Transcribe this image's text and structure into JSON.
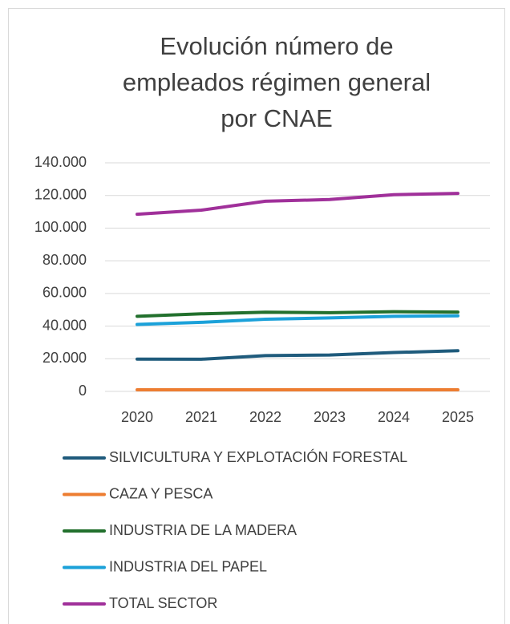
{
  "chart_data": {
    "type": "line",
    "title": [
      "Evolución número de",
      "empleados régimen general",
      "por CNAE"
    ],
    "categories": [
      "2020",
      "2021",
      "2022",
      "2023",
      "2024",
      "2025"
    ],
    "series": [
      {
        "name": "SILVICULTURA Y EXPLOTACIÓN FORESTAL",
        "color": "#1f5b7c",
        "values": [
          19800,
          19700,
          21900,
          22300,
          23800,
          24900
        ]
      },
      {
        "name": "CAZA Y PESCA",
        "color": "#ed7d31",
        "values": [
          1000,
          1000,
          1000,
          1000,
          1000,
          1000
        ]
      },
      {
        "name": "INDUSTRIA DE LA MADERA",
        "color": "#22702d",
        "values": [
          46000,
          47500,
          48500,
          48200,
          48800,
          48600
        ]
      },
      {
        "name": "INDUSTRIA DEL PAPEL",
        "color": "#1ba1d9",
        "values": [
          41000,
          42300,
          44200,
          45000,
          46000,
          46300
        ]
      },
      {
        "name": "TOTAL SECTOR",
        "color": "#a0309a",
        "values": [
          108500,
          111000,
          116500,
          117500,
          120500,
          121300
        ]
      }
    ],
    "ylim": [
      0,
      140000
    ],
    "yticks": [
      0,
      {
        "value": 20000,
        "label": "20.000"
      },
      {
        "value": 40000,
        "label": "40.000"
      },
      {
        "value": 60000,
        "label": "60.000"
      },
      {
        "value": 80000,
        "label": "80.000"
      },
      {
        "value": 100000,
        "label": "100.000"
      },
      {
        "value": 120000,
        "label": "120.000"
      },
      {
        "value": 140000,
        "label": "140.000"
      }
    ],
    "grid": true
  }
}
